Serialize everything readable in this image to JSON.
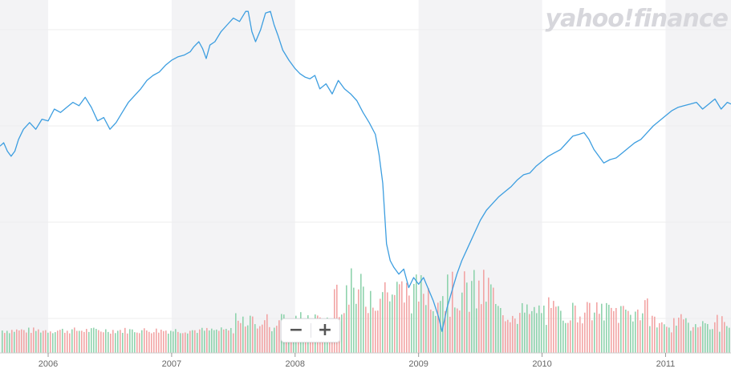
{
  "brand": {
    "logo_text": "yahoo!finance"
  },
  "zoom": {
    "minus_label": "−",
    "plus_label": "+"
  },
  "colors": {
    "price_line": "#3d9ee0",
    "volume_up": "#8fd3ad",
    "volume_down": "#f2a5a5",
    "band": "#f3f3f5",
    "grid": "#eeeeee",
    "axis_text": "#666666"
  },
  "chart_data": {
    "type": "line",
    "x_axis_labels": [
      "2006",
      "2007",
      "2008",
      "2009",
      "2010",
      "2011"
    ],
    "price_series": {
      "x_range": [
        2005.61,
        2011.53
      ],
      "y_range": [
        0,
        1
      ],
      "points": [
        [
          2005.61,
          0.59
        ],
        [
          2005.64,
          0.6
        ],
        [
          2005.67,
          0.575
        ],
        [
          2005.7,
          0.56
        ],
        [
          2005.73,
          0.575
        ],
        [
          2005.76,
          0.61
        ],
        [
          2005.8,
          0.64
        ],
        [
          2005.85,
          0.66
        ],
        [
          2005.9,
          0.64
        ],
        [
          2005.95,
          0.67
        ],
        [
          2006.0,
          0.665
        ],
        [
          2006.05,
          0.7
        ],
        [
          2006.1,
          0.69
        ],
        [
          2006.15,
          0.705
        ],
        [
          2006.2,
          0.72
        ],
        [
          2006.25,
          0.71
        ],
        [
          2006.3,
          0.735
        ],
        [
          2006.35,
          0.705
        ],
        [
          2006.4,
          0.665
        ],
        [
          2006.45,
          0.675
        ],
        [
          2006.5,
          0.64
        ],
        [
          2006.55,
          0.66
        ],
        [
          2006.6,
          0.69
        ],
        [
          2006.65,
          0.72
        ],
        [
          2006.7,
          0.74
        ],
        [
          2006.75,
          0.76
        ],
        [
          2006.8,
          0.785
        ],
        [
          2006.85,
          0.8
        ],
        [
          2006.9,
          0.81
        ],
        [
          2006.95,
          0.83
        ],
        [
          2007.0,
          0.845
        ],
        [
          2007.05,
          0.855
        ],
        [
          2007.1,
          0.86
        ],
        [
          2007.15,
          0.87
        ],
        [
          2007.18,
          0.885
        ],
        [
          2007.22,
          0.9
        ],
        [
          2007.25,
          0.88
        ],
        [
          2007.28,
          0.85
        ],
        [
          2007.31,
          0.89
        ],
        [
          2007.35,
          0.9
        ],
        [
          2007.4,
          0.93
        ],
        [
          2007.45,
          0.95
        ],
        [
          2007.5,
          0.97
        ],
        [
          2007.55,
          0.96
        ],
        [
          2007.6,
          0.99
        ],
        [
          2007.62,
          0.99
        ],
        [
          2007.65,
          0.93
        ],
        [
          2007.68,
          0.9
        ],
        [
          2007.72,
          0.935
        ],
        [
          2007.76,
          0.985
        ],
        [
          2007.8,
          0.99
        ],
        [
          2007.83,
          0.95
        ],
        [
          2007.86,
          0.92
        ],
        [
          2007.9,
          0.875
        ],
        [
          2007.95,
          0.845
        ],
        [
          2008.0,
          0.82
        ],
        [
          2008.04,
          0.805
        ],
        [
          2008.08,
          0.795
        ],
        [
          2008.12,
          0.79
        ],
        [
          2008.16,
          0.8
        ],
        [
          2008.2,
          0.76
        ],
        [
          2008.25,
          0.775
        ],
        [
          2008.3,
          0.745
        ],
        [
          2008.35,
          0.785
        ],
        [
          2008.4,
          0.76
        ],
        [
          2008.45,
          0.745
        ],
        [
          2008.5,
          0.725
        ],
        [
          2008.55,
          0.69
        ],
        [
          2008.6,
          0.66
        ],
        [
          2008.65,
          0.625
        ],
        [
          2008.68,
          0.565
        ],
        [
          2008.71,
          0.48
        ],
        [
          2008.74,
          0.3
        ],
        [
          2008.77,
          0.25
        ],
        [
          2008.8,
          0.23
        ],
        [
          2008.84,
          0.21
        ],
        [
          2008.88,
          0.225
        ],
        [
          2008.92,
          0.17
        ],
        [
          2008.96,
          0.2
        ],
        [
          2009.0,
          0.18
        ],
        [
          2009.04,
          0.2
        ],
        [
          2009.08,
          0.165
        ],
        [
          2009.12,
          0.13
        ],
        [
          2009.16,
          0.085
        ],
        [
          2009.19,
          0.04
        ],
        [
          2009.23,
          0.11
        ],
        [
          2009.27,
          0.16
        ],
        [
          2009.31,
          0.21
        ],
        [
          2009.35,
          0.25
        ],
        [
          2009.4,
          0.29
        ],
        [
          2009.45,
          0.33
        ],
        [
          2009.5,
          0.37
        ],
        [
          2009.55,
          0.4
        ],
        [
          2009.6,
          0.42
        ],
        [
          2009.65,
          0.44
        ],
        [
          2009.7,
          0.455
        ],
        [
          2009.75,
          0.47
        ],
        [
          2009.8,
          0.49
        ],
        [
          2009.85,
          0.505
        ],
        [
          2009.9,
          0.51
        ],
        [
          2009.95,
          0.53
        ],
        [
          2010.0,
          0.545
        ],
        [
          2010.05,
          0.56
        ],
        [
          2010.1,
          0.57
        ],
        [
          2010.15,
          0.58
        ],
        [
          2010.2,
          0.6
        ],
        [
          2010.25,
          0.62
        ],
        [
          2010.3,
          0.625
        ],
        [
          2010.34,
          0.63
        ],
        [
          2010.38,
          0.61
        ],
        [
          2010.42,
          0.58
        ],
        [
          2010.46,
          0.56
        ],
        [
          2010.5,
          0.54
        ],
        [
          2010.55,
          0.55
        ],
        [
          2010.6,
          0.555
        ],
        [
          2010.65,
          0.57
        ],
        [
          2010.7,
          0.585
        ],
        [
          2010.75,
          0.6
        ],
        [
          2010.8,
          0.61
        ],
        [
          2010.85,
          0.63
        ],
        [
          2010.9,
          0.65
        ],
        [
          2010.95,
          0.665
        ],
        [
          2011.0,
          0.68
        ],
        [
          2011.05,
          0.695
        ],
        [
          2011.1,
          0.705
        ],
        [
          2011.15,
          0.71
        ],
        [
          2011.2,
          0.715
        ],
        [
          2011.25,
          0.72
        ],
        [
          2011.3,
          0.7
        ],
        [
          2011.35,
          0.715
        ],
        [
          2011.4,
          0.73
        ],
        [
          2011.45,
          0.7
        ],
        [
          2011.5,
          0.72
        ],
        [
          2011.53,
          0.715
        ]
      ]
    },
    "volume_series": {
      "x_range": [
        2005.61,
        2011.53
      ]
    }
  }
}
